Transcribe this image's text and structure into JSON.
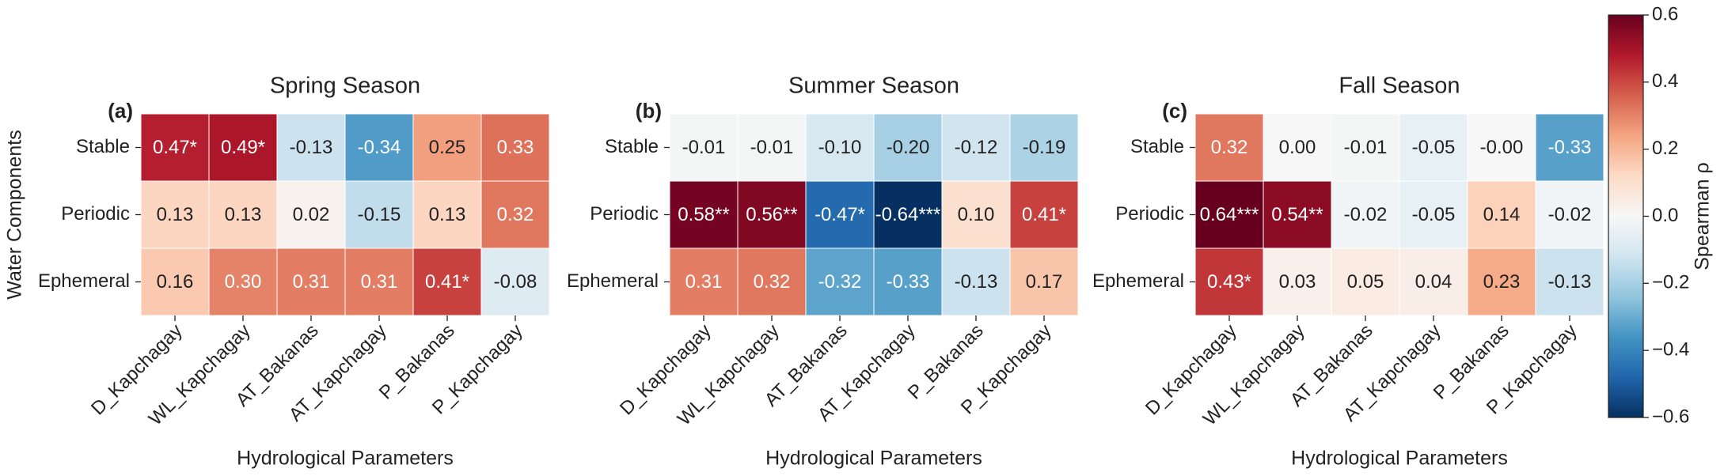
{
  "chart_data": [
    {
      "type": "heatmap",
      "title": "Spring Season",
      "panel_label": "(a)",
      "x_label": "Hydrological Parameters",
      "y_label": "Water Components",
      "categories": [
        "D_Kapchagay",
        "WL_Kapchagay",
        "AT_Bakanas",
        "AT_Kapchagay",
        "P_Bakanas",
        "P_Kapchagay"
      ],
      "rows": [
        "Stable",
        "Periodic",
        "Ephemeral"
      ],
      "values": [
        [
          0.47,
          0.49,
          -0.13,
          -0.34,
          0.25,
          0.33
        ],
        [
          0.13,
          0.13,
          0.02,
          -0.15,
          0.13,
          0.32
        ],
        [
          0.16,
          0.3,
          0.31,
          0.31,
          0.41,
          -0.08
        ]
      ],
      "value_labels": [
        [
          "0.47*",
          "0.49*",
          "-0.13",
          "-0.34",
          "0.25",
          "0.33"
        ],
        [
          "0.13",
          "0.13",
          "0.02",
          "-0.15",
          "0.13",
          "0.32"
        ],
        [
          "0.16",
          "0.30",
          "0.31",
          "0.31",
          "0.41*",
          "-0.08"
        ]
      ]
    },
    {
      "type": "heatmap",
      "title": "Summer Season",
      "panel_label": "(b)",
      "x_label": "Hydrological Parameters",
      "categories": [
        "D_Kapchagay",
        "WL_Kapchagay",
        "AT_Bakanas",
        "AT_Kapchagay",
        "P_Bakanas",
        "P_Kapchagay"
      ],
      "rows": [
        "Stable",
        "Periodic",
        "Ephemeral"
      ],
      "values": [
        [
          -0.01,
          -0.01,
          -0.1,
          -0.2,
          -0.12,
          -0.19
        ],
        [
          0.58,
          0.56,
          -0.47,
          -0.64,
          0.1,
          0.41
        ],
        [
          0.31,
          0.32,
          -0.32,
          -0.33,
          -0.13,
          0.17
        ]
      ],
      "value_labels": [
        [
          "-0.01",
          "-0.01",
          "-0.10",
          "-0.20",
          "-0.12",
          "-0.19"
        ],
        [
          "0.58**",
          "0.56**",
          "-0.47*",
          "-0.64***",
          "0.10",
          "0.41*"
        ],
        [
          "0.31",
          "0.32",
          "-0.32",
          "-0.33",
          "-0.13",
          "0.17"
        ]
      ]
    },
    {
      "type": "heatmap",
      "title": "Fall Season",
      "panel_label": "(c)",
      "x_label": "Hydrological Parameters",
      "categories": [
        "D_Kapchagay",
        "WL_Kapchagay",
        "AT_Bakanas",
        "AT_Kapchagay",
        "P_Bakanas",
        "P_Kapchagay"
      ],
      "rows": [
        "Stable",
        "Periodic",
        "Ephemeral"
      ],
      "values": [
        [
          0.32,
          0.0,
          -0.01,
          -0.05,
          -0.0,
          -0.33
        ],
        [
          0.64,
          0.54,
          -0.02,
          -0.05,
          0.14,
          -0.02
        ],
        [
          0.43,
          0.03,
          0.05,
          0.04,
          0.23,
          -0.13
        ]
      ],
      "value_labels": [
        [
          "0.32",
          "0.00",
          "-0.01",
          "-0.05",
          "-0.00",
          "-0.33"
        ],
        [
          "0.64***",
          "0.54**",
          "-0.02",
          "-0.05",
          "0.14",
          "-0.02"
        ],
        [
          "0.43*",
          "0.03",
          "0.05",
          "0.04",
          "0.23",
          "-0.13"
        ]
      ]
    },
    {
      "type": "colorbar",
      "label": "Spearman ρ",
      "colormap": "RdBu_r",
      "zlim": [
        -0.6,
        0.6
      ],
      "zticks": [
        {
          "value": -0.6,
          "label": "−0.6"
        },
        {
          "value": -0.4,
          "label": "−0.4"
        },
        {
          "value": -0.2,
          "label": "−0.2"
        },
        {
          "value": 0,
          "label": "0.0"
        },
        0.2,
        0.4,
        0.6
      ]
    }
  ]
}
